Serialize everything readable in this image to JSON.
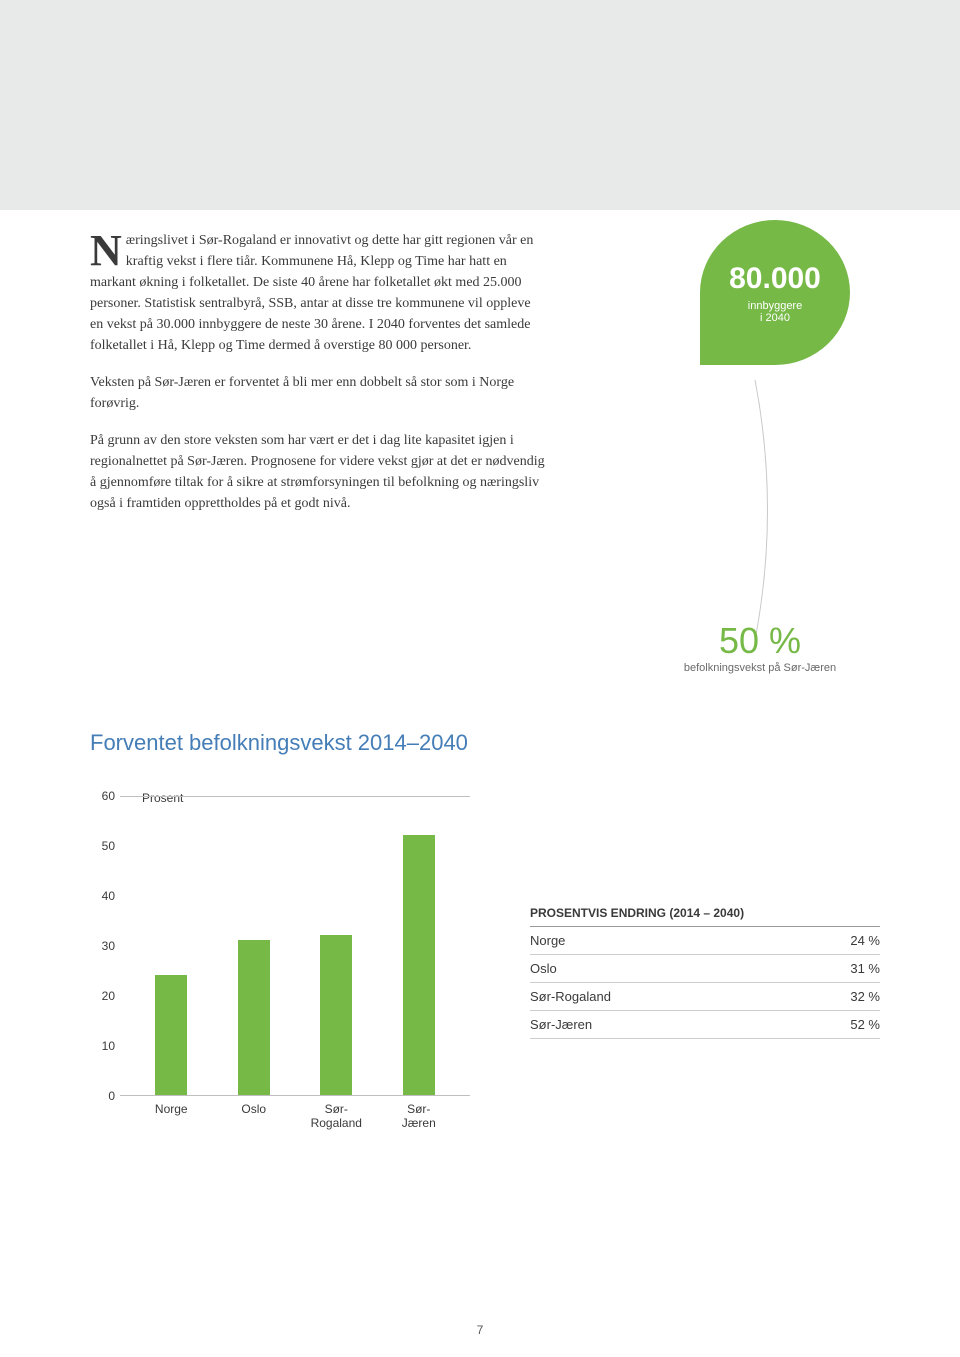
{
  "body": {
    "dropcap": "N",
    "p1_first": "æringslivet i Sør-Rogaland er innovativt og dette har gitt regionen vår en kraftig vekst i flere tiår. Kommunene Hå, Klepp og Time har hatt en markant økning i folketallet. De siste 40 årene har folketallet økt med 25.000 personer. Statistisk sentralbyrå, SSB, antar at disse tre kommunene vil oppleve en vekst på 30.000 innbyggere de neste 30 årene. I 2040 forventes det samlede folketallet i Hå, Klepp og Time dermed å overstige 80 000 personer.",
    "p2": "Veksten på Sør-Jæren er forventet å bli mer enn dobbelt så stor som i Norge forøvrig.",
    "p3": "På grunn av den store veksten som har vært er det i dag lite kapasitet igjen i regionalnettet på Sør-Jæren. Prognosene for videre vekst gjør at det er nødvendig å gjennomføre tiltak for å sikre at strømforsyningen til befolkning og næringsliv også i framtiden opprettholdes på et godt nivå."
  },
  "leaf": {
    "big": "80.000",
    "small1": "innbyggere",
    "small2": "i 2040",
    "bg_color": "#76b947"
  },
  "pct50": {
    "num": "50 %",
    "cap": "befolkningsvekst på Sør-Jæren"
  },
  "chart": {
    "title": "Forventet befolkningsvekst 2014–2040",
    "unit": "Prosent",
    "ymax": 60,
    "ytick_step": 10,
    "yticks": [
      "60",
      "50",
      "40",
      "30",
      "20",
      "10",
      "0"
    ],
    "categories": [
      "Norge",
      "Oslo",
      "Sør-\nRogaland",
      "Sør-\nJæren"
    ],
    "values": [
      24,
      31,
      32,
      52
    ],
    "bar_color": "#76b947",
    "grid_color": "#bfbfbf"
  },
  "table": {
    "header": "PROSENTVIS ENDRING (2014 – 2040)",
    "rows": [
      {
        "label": "Norge",
        "val": "24 %"
      },
      {
        "label": "Oslo",
        "val": "31 %"
      },
      {
        "label": "Sør-Rogaland",
        "val": "32 %"
      },
      {
        "label": "Sør-Jæren",
        "val": "52 %"
      }
    ]
  },
  "page_number": "7"
}
